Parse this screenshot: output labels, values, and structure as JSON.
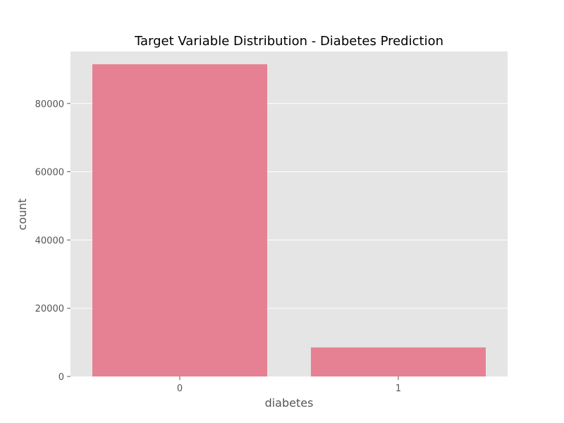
{
  "chart_data": {
    "type": "bar",
    "title": "Target Variable Distribution - Diabetes Prediction",
    "xlabel": "diabetes",
    "ylabel": "count",
    "categories": [
      "0",
      "1"
    ],
    "values": [
      91500,
      8500
    ],
    "ylim": [
      0,
      95250
    ],
    "yticks": [
      0,
      20000,
      40000,
      60000,
      80000
    ],
    "grid": true,
    "legend": "none",
    "colors": {
      "bar": "#e68193",
      "plot_background": "#e5e5e5",
      "grid": "#ffffff",
      "tick_text": "#555555",
      "title_text": "#000000",
      "axis_label_text": "#555555"
    }
  }
}
